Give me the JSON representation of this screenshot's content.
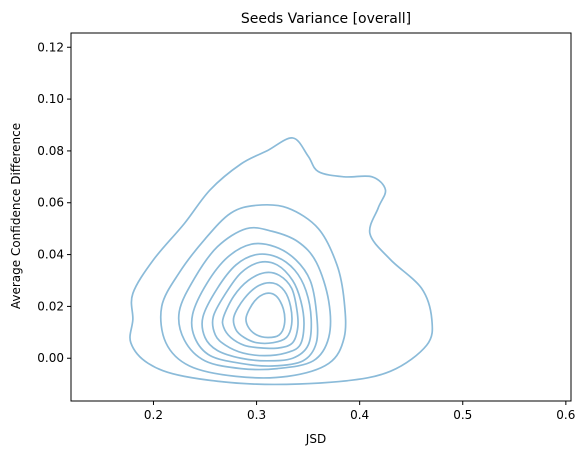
{
  "chart_data": {
    "type": "kde-contour",
    "title": "Seeds Variance [overall]",
    "xlabel": "JSD",
    "ylabel": "Average Confidence Difference",
    "xlim": [
      0.12,
      0.605
    ],
    "ylim": [
      -0.0165,
      0.1255
    ],
    "xticks": [
      0.2,
      0.3,
      0.4,
      0.5,
      0.6
    ],
    "xtick_labels": [
      "0.2",
      "0.3",
      "0.4",
      "0.5",
      "0.6"
    ],
    "yticks": [
      0.0,
      0.02,
      0.04,
      0.06,
      0.08,
      0.1,
      0.12
    ],
    "ytick_labels": [
      "0.00",
      "0.02",
      "0.04",
      "0.06",
      "0.08",
      "0.10",
      "0.12"
    ],
    "grid": false,
    "line_color": "#8bbbd9",
    "series": [
      {
        "contours": [
          [
            [
              0.18,
              0.025
            ],
            [
              0.2,
              0.038
            ],
            [
              0.23,
              0.052
            ],
            [
              0.255,
              0.065
            ],
            [
              0.285,
              0.075
            ],
            [
              0.31,
              0.08
            ],
            [
              0.335,
              0.085
            ],
            [
              0.35,
              0.078
            ],
            [
              0.36,
              0.072
            ],
            [
              0.385,
              0.07
            ],
            [
              0.412,
              0.07
            ],
            [
              0.425,
              0.065
            ],
            [
              0.418,
              0.058
            ],
            [
              0.41,
              0.048
            ],
            [
              0.43,
              0.038
            ],
            [
              0.46,
              0.027
            ],
            [
              0.47,
              0.015
            ],
            [
              0.465,
              0.005
            ],
            [
              0.43,
              -0.005
            ],
            [
              0.38,
              -0.009
            ],
            [
              0.3,
              -0.01
            ],
            [
              0.23,
              -0.007
            ],
            [
              0.195,
              -0.002
            ],
            [
              0.178,
              0.006
            ],
            [
              0.18,
              0.015
            ]
          ],
          [
            [
              0.208,
              0.02
            ],
            [
              0.225,
              0.033
            ],
            [
              0.25,
              0.046
            ],
            [
              0.275,
              0.056
            ],
            [
              0.3,
              0.059
            ],
            [
              0.33,
              0.058
            ],
            [
              0.36,
              0.05
            ],
            [
              0.378,
              0.036
            ],
            [
              0.385,
              0.022
            ],
            [
              0.385,
              0.008
            ],
            [
              0.37,
              -0.002
            ],
            [
              0.33,
              -0.007
            ],
            [
              0.28,
              -0.007
            ],
            [
              0.235,
              -0.003
            ],
            [
              0.212,
              0.006
            ]
          ],
          [
            [
              0.225,
              0.018
            ],
            [
              0.24,
              0.031
            ],
            [
              0.262,
              0.043
            ],
            [
              0.29,
              0.05
            ],
            [
              0.315,
              0.049
            ],
            [
              0.34,
              0.045
            ],
            [
              0.358,
              0.037
            ],
            [
              0.37,
              0.022
            ],
            [
              0.37,
              0.008
            ],
            [
              0.355,
              -0.001
            ],
            [
              0.32,
              -0.004
            ],
            [
              0.285,
              -0.004
            ],
            [
              0.25,
              -0.001
            ],
            [
              0.23,
              0.007
            ]
          ],
          [
            [
              0.238,
              0.017
            ],
            [
              0.252,
              0.029
            ],
            [
              0.272,
              0.039
            ],
            [
              0.295,
              0.044
            ],
            [
              0.318,
              0.043
            ],
            [
              0.338,
              0.038
            ],
            [
              0.352,
              0.03
            ],
            [
              0.358,
              0.018
            ],
            [
              0.358,
              0.006
            ],
            [
              0.345,
              -0.001
            ],
            [
              0.315,
              -0.003
            ],
            [
              0.285,
              -0.002
            ],
            [
              0.255,
              0.001
            ],
            [
              0.24,
              0.008
            ]
          ],
          [
            [
              0.248,
              0.016
            ],
            [
              0.262,
              0.027
            ],
            [
              0.28,
              0.036
            ],
            [
              0.3,
              0.04
            ],
            [
              0.32,
              0.039
            ],
            [
              0.337,
              0.034
            ],
            [
              0.348,
              0.026
            ],
            [
              0.353,
              0.015
            ],
            [
              0.35,
              0.005
            ],
            [
              0.335,
              0.0
            ],
            [
              0.31,
              -0.001
            ],
            [
              0.285,
              0.0
            ],
            [
              0.262,
              0.003
            ],
            [
              0.25,
              0.008
            ]
          ],
          [
            [
              0.258,
              0.016
            ],
            [
              0.27,
              0.025
            ],
            [
              0.285,
              0.033
            ],
            [
              0.303,
              0.037
            ],
            [
              0.32,
              0.036
            ],
            [
              0.335,
              0.03
            ],
            [
              0.343,
              0.022
            ],
            [
              0.346,
              0.013
            ],
            [
              0.342,
              0.005
            ],
            [
              0.328,
              0.002
            ],
            [
              0.308,
              0.001
            ],
            [
              0.287,
              0.002
            ],
            [
              0.27,
              0.005
            ],
            [
              0.26,
              0.009
            ]
          ],
          [
            [
              0.268,
              0.016
            ],
            [
              0.278,
              0.024
            ],
            [
              0.292,
              0.03
            ],
            [
              0.308,
              0.033
            ],
            [
              0.322,
              0.032
            ],
            [
              0.334,
              0.027
            ],
            [
              0.339,
              0.019
            ],
            [
              0.34,
              0.012
            ],
            [
              0.335,
              0.006
            ],
            [
              0.322,
              0.004
            ],
            [
              0.304,
              0.004
            ],
            [
              0.288,
              0.005
            ],
            [
              0.275,
              0.008
            ],
            [
              0.268,
              0.012
            ]
          ],
          [
            [
              0.278,
              0.016
            ],
            [
              0.288,
              0.023
            ],
            [
              0.302,
              0.028
            ],
            [
              0.316,
              0.029
            ],
            [
              0.327,
              0.026
            ],
            [
              0.333,
              0.02
            ],
            [
              0.334,
              0.013
            ],
            [
              0.329,
              0.008
            ],
            [
              0.316,
              0.006
            ],
            [
              0.3,
              0.006
            ],
            [
              0.288,
              0.008
            ],
            [
              0.28,
              0.011
            ]
          ],
          [
            [
              0.29,
              0.016
            ],
            [
              0.298,
              0.022
            ],
            [
              0.309,
              0.025
            ],
            [
              0.319,
              0.024
            ],
            [
              0.326,
              0.019
            ],
            [
              0.327,
              0.013
            ],
            [
              0.322,
              0.009
            ],
            [
              0.311,
              0.008
            ],
            [
              0.3,
              0.009
            ],
            [
              0.292,
              0.012
            ]
          ]
        ]
      }
    ]
  }
}
